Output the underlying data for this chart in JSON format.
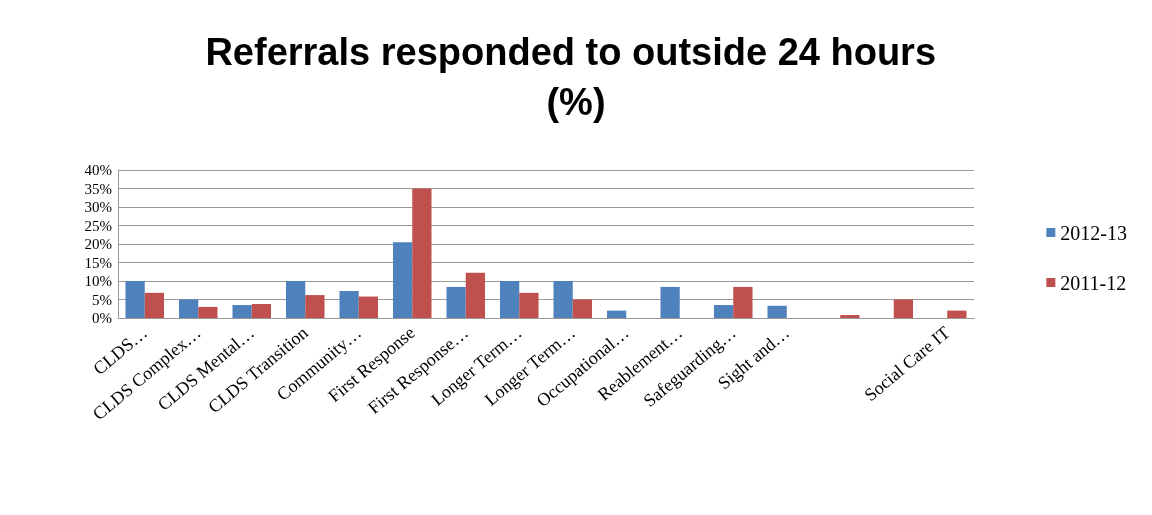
{
  "chart_data": {
    "type": "bar",
    "title": "Referrals responded to outside 24 hours (%)",
    "categories": [
      "CLDS…",
      "CLDS Complex…",
      "CLDS Mental…",
      "CLDS Transition",
      "Community…",
      "First Response",
      "First Response…",
      "Longer Term…",
      "Longer Term…",
      "Occupational…",
      "Reablement…",
      "Safeguarding…",
      "Sight and…",
      null,
      null,
      "Social Care IT"
    ],
    "series": [
      {
        "name": "2012-13",
        "color": "#4f81bd",
        "values": [
          10,
          5,
          3.5,
          10,
          7.3,
          20.5,
          8.4,
          10,
          10,
          2,
          8.4,
          3.5,
          3.3,
          null,
          null,
          null
        ]
      },
      {
        "name": "2011-12",
        "color": "#c0504d",
        "values": [
          6.8,
          3,
          3.8,
          6.2,
          5.8,
          35,
          12.2,
          6.8,
          5,
          null,
          null,
          8.4,
          null,
          0.8,
          5,
          2
        ]
      }
    ],
    "ylim": [
      0,
      40
    ],
    "yticks": [
      {
        "value": 0,
        "label": "0%"
      },
      {
        "value": 5,
        "label": "5%"
      },
      {
        "value": 10,
        "label": "10%"
      },
      {
        "value": 15,
        "label": "15%"
      },
      {
        "value": 20,
        "label": "20%"
      },
      {
        "value": 25,
        "label": "25%"
      },
      {
        "value": 30,
        "label": "30%"
      },
      {
        "value": 35,
        "label": "35%"
      },
      {
        "value": 40,
        "label": "40%"
      }
    ],
    "grid": "y",
    "legend": "right"
  }
}
